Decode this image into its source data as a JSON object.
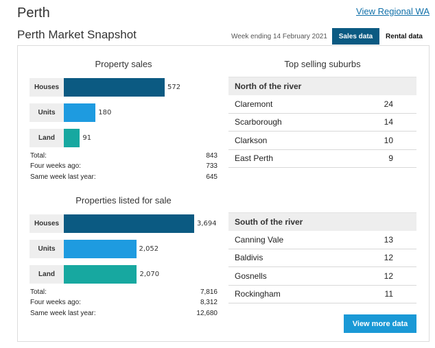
{
  "header": {
    "city": "Perth",
    "regional_link": "View Regional WA",
    "snapshot_title": "Perth Market Snapshot",
    "week": "Week ending 14 February 2021",
    "tabs": [
      "Sales data",
      "Rental data"
    ]
  },
  "property_sales": {
    "title": "Property sales",
    "bars": [
      {
        "label": "Houses",
        "value": 572,
        "display": "572",
        "color": "#0b5a82"
      },
      {
        "label": "Units",
        "value": 180,
        "display": "180",
        "color": "#1e9be0"
      },
      {
        "label": "Land",
        "value": 91,
        "display": "91",
        "color": "#17a8a0"
      }
    ],
    "stats": [
      {
        "label": "Total:",
        "value": "843"
      },
      {
        "label": "Four weeks ago:",
        "value": "733"
      },
      {
        "label": "Same week last year:",
        "value": "645"
      }
    ]
  },
  "listed_for_sale": {
    "title": "Properties listed for sale",
    "bars": [
      {
        "label": "Houses",
        "value": 3694,
        "display": "3,694",
        "color": "#0b5a82"
      },
      {
        "label": "Units",
        "value": 2052,
        "display": "2,052",
        "color": "#1e9be0"
      },
      {
        "label": "Land",
        "value": 2070,
        "display": "2,070",
        "color": "#17a8a0"
      }
    ],
    "stats": [
      {
        "label": "Total:",
        "value": "7,816"
      },
      {
        "label": "Four weeks ago:",
        "value": "8,312"
      },
      {
        "label": "Same week last year:",
        "value": "12,680"
      }
    ]
  },
  "top_suburbs": {
    "title": "Top selling suburbs",
    "north": {
      "heading": "North of the river",
      "rows": [
        {
          "name": "Claremont",
          "count": "24"
        },
        {
          "name": "Scarborough",
          "count": "14"
        },
        {
          "name": "Clarkson",
          "count": "10"
        },
        {
          "name": "East Perth",
          "count": "9"
        }
      ]
    },
    "south": {
      "heading": "South of the river",
      "rows": [
        {
          "name": "Canning Vale",
          "count": "13"
        },
        {
          "name": "Baldivis",
          "count": "12"
        },
        {
          "name": "Gosnells",
          "count": "12"
        },
        {
          "name": "Rockingham",
          "count": "11"
        }
      ]
    }
  },
  "more_button": "View more data"
}
